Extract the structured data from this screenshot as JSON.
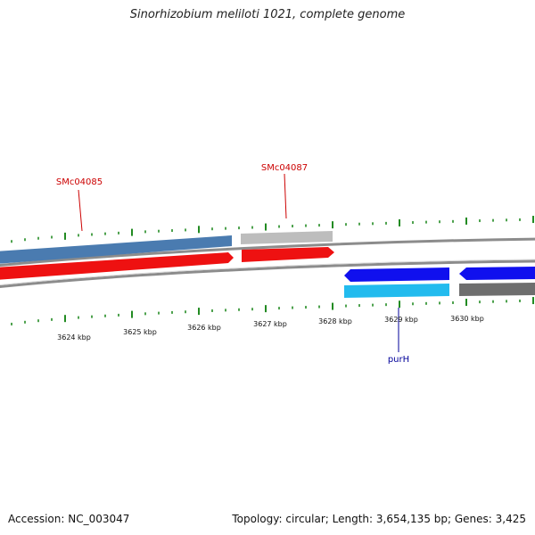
{
  "title": "Sinorhizobium meliloti 1021, complete genome",
  "footer": {
    "accession": "Accession: NC_003047",
    "summary": "Topology: circular; Length: 3,654,135 bp; Genes: 3,425"
  },
  "colors": {
    "tick": "#228b22",
    "gene_label_forward": "#cc0000",
    "gene_label_reverse": "#000099",
    "backbone": "#8c8c8c"
  },
  "features": [
    {
      "id": "f1",
      "strand": "+",
      "track": "outer",
      "color": "#4a7bb0",
      "kind": "bar"
    },
    {
      "id": "f2",
      "strand": "+",
      "track": "outer",
      "color": "#bdbdbd",
      "kind": "bar"
    },
    {
      "id": "f3",
      "strand": "+",
      "track": "inner",
      "color": "#ee1111",
      "kind": "arrow"
    },
    {
      "id": "f4",
      "strand": "+",
      "track": "inner",
      "color": "#ee1111",
      "kind": "arrow"
    },
    {
      "id": "f5",
      "strand": "-",
      "track": "inner",
      "color": "#1010ee",
      "kind": "arrow"
    },
    {
      "id": "f6",
      "strand": "-",
      "track": "inner",
      "color": "#1010ee",
      "kind": "arrow"
    },
    {
      "id": "f7",
      "strand": "-",
      "track": "outer",
      "color": "#22bbee",
      "kind": "bar"
    },
    {
      "id": "f8",
      "strand": "-",
      "track": "outer",
      "color": "#6e6e6e",
      "kind": "bar"
    }
  ],
  "gene_labels": [
    {
      "id": "g1",
      "text": "SMc04085"
    },
    {
      "id": "g2",
      "text": "SMc04087"
    },
    {
      "id": "g3",
      "text": "purH"
    }
  ],
  "kbp_labels": [
    "3624 kbp",
    "3625 kbp",
    "3626 kbp",
    "3627 kbp",
    "3628 kbp",
    "3629 kbp",
    "3630 kbp"
  ]
}
